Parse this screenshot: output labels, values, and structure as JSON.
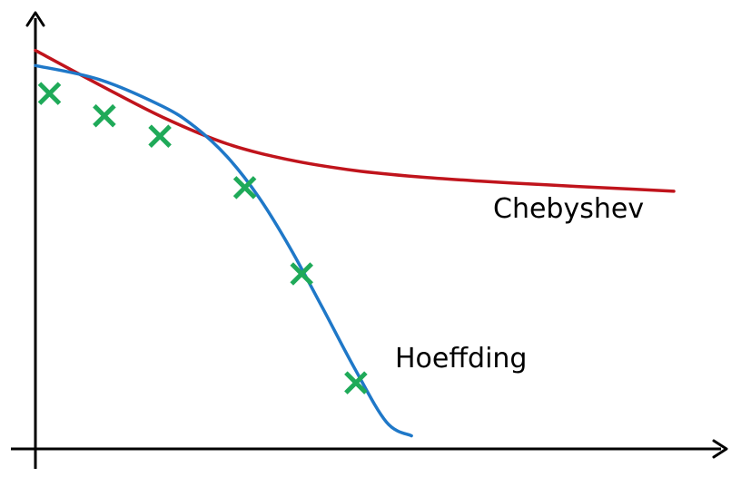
{
  "chart_data": {
    "type": "line",
    "title": "",
    "xlabel": "",
    "ylabel": "",
    "grid": false,
    "legend": "none",
    "axes": {
      "tick_labels": false,
      "arrowheads": true,
      "color": "#000000"
    },
    "xlim": [
      0,
      100
    ],
    "ylim": [
      0,
      100
    ],
    "series": [
      {
        "name": "Chebyshev",
        "color": "#c0141c",
        "style": "line",
        "x": [
          0,
          10,
          20,
          30,
          40,
          50,
          60,
          70,
          80,
          90,
          100
        ],
        "y": [
          97.6,
          89.0,
          80.8,
          74.2,
          70.1,
          67.5,
          65.9,
          64.8,
          63.9,
          63.1,
          62.3
        ]
      },
      {
        "name": "Hoeffding",
        "color": "#1f78c8",
        "style": "line",
        "x": [
          0,
          10,
          20,
          25,
          30,
          35,
          40,
          45,
          50,
          55,
          58.9
        ],
        "y": [
          93.8,
          90.3,
          83.5,
          78.4,
          71.0,
          60.8,
          47.8,
          33.0,
          17.9,
          4.4,
          1.0
        ]
      },
      {
        "name": "",
        "color": "#1faa59",
        "style": "markers",
        "marker": "x",
        "x": [
          2.2,
          10.8,
          19.5,
          32.8,
          41.7,
          50.2
        ],
        "y": [
          86.8,
          81.2,
          76.1,
          63.2,
          41.6,
          14.3
        ]
      }
    ]
  }
}
